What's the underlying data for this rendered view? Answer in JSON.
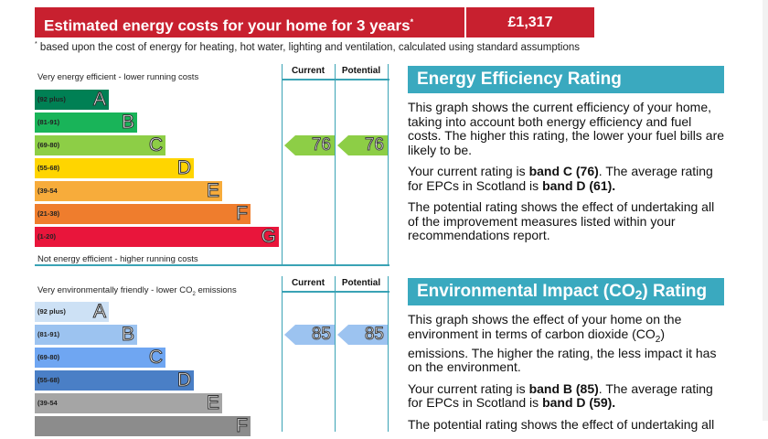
{
  "costs": {
    "title": "Estimated energy costs for your home for 3 years",
    "title_mark": "*",
    "value": "£1,317",
    "footnote_mark": "*",
    "footnote": " based upon the cost of energy for heating, hot water, lighting and ventilation, calculated using standard assumptions"
  },
  "energy_chart": {
    "top_label": "Very energy efficient - lower running costs",
    "bottom_label": "Not energy efficient - higher running costs",
    "current_header": "Current",
    "potential_header": "Potential",
    "bands": [
      {
        "range": "(92 plus)",
        "letter": "A",
        "color": "#008054"
      },
      {
        "range": "(81-91)",
        "letter": "B",
        "color": "#19b459"
      },
      {
        "range": "(69-80)",
        "letter": "C",
        "color": "#8dce46"
      },
      {
        "range": "(55-68)",
        "letter": "D",
        "color": "#ffd500"
      },
      {
        "range": "(39-54",
        "letter": "E",
        "color": "#f7ac3b"
      },
      {
        "range": "(21-38)",
        "letter": "F",
        "color": "#ef7d2d"
      },
      {
        "range": "(1-20)",
        "letter": "G",
        "color": "#e9153b"
      }
    ],
    "current": "76",
    "potential": "76",
    "arrow_color": "#8dce46",
    "arrow_band_index": 2
  },
  "co2_chart": {
    "top_label": "Very environmentally friendly - lower CO",
    "top_label_sub": "2",
    "top_label_end": " emissions",
    "current_header": "Current",
    "potential_header": "Potential",
    "bands": [
      {
        "range": "(92 plus)",
        "letter": "A",
        "color": "#cde1f5"
      },
      {
        "range": "(81-91)",
        "letter": "B",
        "color": "#9cc3f0"
      },
      {
        "range": "(69-80)",
        "letter": "C",
        "color": "#6fa6f2"
      },
      {
        "range": "(55-68)",
        "letter": "D",
        "color": "#4a7fc6"
      },
      {
        "range": "(39-54",
        "letter": "E",
        "color": "#a5a5a5"
      },
      {
        "range": "",
        "letter": "F",
        "color": "#8c8c8c"
      }
    ],
    "current": "85",
    "potential": "85",
    "arrow_color": "#9cc3f0",
    "arrow_band_index": 1
  },
  "eer": {
    "title": "Energy Efficiency Rating",
    "p1": "This graph shows the current efficiency of your home, taking into account both energy efficiency and fuel costs. The higher this rating, the lower your fuel bills are likely to be.",
    "p2_a": "Your current rating is ",
    "p2_b": "band C (76)",
    "p2_c": ". The average rating for EPCs in Scotland is ",
    "p2_d": "band D (61).",
    "p3": "The potential rating shows the effect of undertaking all of the improvement measures listed within your recommendations report."
  },
  "eir": {
    "title_a": "Environmental Impact (CO",
    "title_sub": "2",
    "title_b": ") Rating",
    "p1_a": "This graph shows the effect of your home on the environment in terms of carbon dioxide (CO",
    "p1_sub": "2",
    "p1_b": ") emissions. The higher the rating, the less impact it has on the environment.",
    "p2_a": "Your current rating is ",
    "p2_b": "band B (85)",
    "p2_c": ". The average rating for EPCs in Scotland is ",
    "p2_d": "band D (59).",
    "p3": "The potential rating shows the effect of undertaking all"
  }
}
